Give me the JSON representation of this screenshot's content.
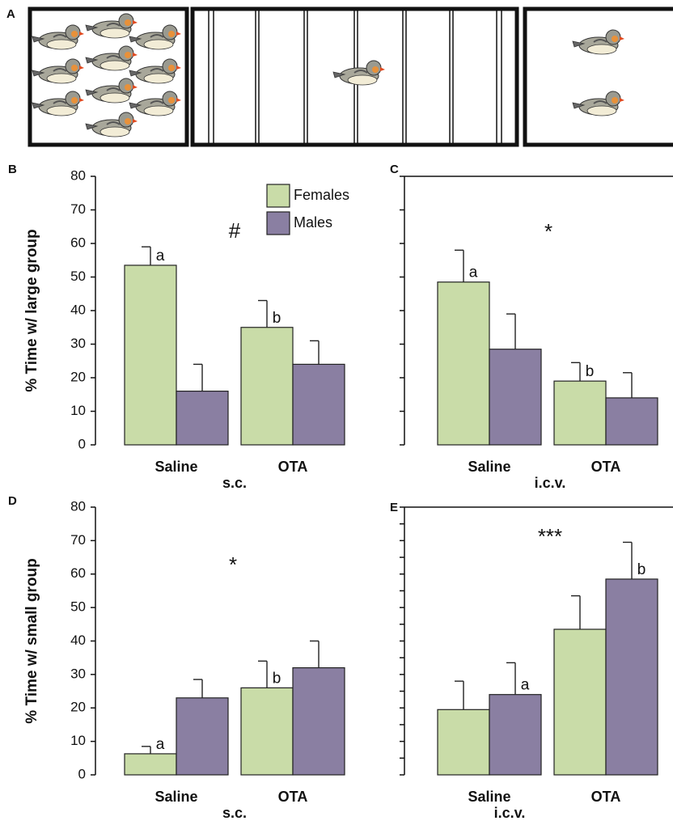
{
  "panel_a": {
    "label": "A"
  },
  "chart_data": [
    {
      "type": "bar",
      "panel": "B",
      "y_label": "% Time w/ large group",
      "group_label": "s.c.",
      "annotation": "#",
      "categories": [
        "Saline",
        "OTA"
      ],
      "ylim": [
        0,
        80
      ],
      "yticks": [
        0,
        10,
        20,
        30,
        40,
        50,
        60,
        70,
        80
      ],
      "tick_labels": true,
      "legend": true,
      "series": [
        {
          "name": "Females",
          "color": "#c9dca8",
          "values": [
            53.5,
            35
          ],
          "errors": [
            5.5,
            8
          ],
          "letters": [
            "a",
            "b"
          ]
        },
        {
          "name": "Males",
          "color": "#8a7fa2",
          "values": [
            16,
            24
          ],
          "errors": [
            8,
            7
          ],
          "letters": [
            null,
            null
          ]
        }
      ]
    },
    {
      "type": "bar",
      "panel": "C",
      "group_label": "i.c.v.",
      "annotation": "*",
      "categories": [
        "Saline",
        "OTA"
      ],
      "ylim": [
        0,
        80
      ],
      "yticks": [
        0,
        10,
        20,
        30,
        40,
        50,
        60,
        70,
        80
      ],
      "tick_labels": false,
      "legend": false,
      "series": [
        {
          "name": "Females",
          "color": "#c9dca8",
          "values": [
            48.5,
            19
          ],
          "errors": [
            9.5,
            5.5
          ],
          "letters": [
            "a",
            "b"
          ]
        },
        {
          "name": "Males",
          "color": "#8a7fa2",
          "values": [
            28.5,
            14
          ],
          "errors": [
            10.5,
            7.5
          ],
          "letters": [
            null,
            null
          ]
        }
      ]
    },
    {
      "type": "bar",
      "panel": "D",
      "y_label": "% Time w/ small group",
      "group_label": "s.c.",
      "annotation": "*",
      "categories": [
        "Saline",
        "OTA"
      ],
      "ylim": [
        0,
        80
      ],
      "yticks": [
        0,
        10,
        20,
        30,
        40,
        50,
        60,
        70,
        80
      ],
      "tick_labels": true,
      "legend": false,
      "series": [
        {
          "name": "Females",
          "color": "#c9dca8",
          "values": [
            6.3,
            26
          ],
          "errors": [
            2.2,
            8
          ],
          "letters": [
            "a",
            "b"
          ]
        },
        {
          "name": "Males",
          "color": "#8a7fa2",
          "values": [
            23,
            32
          ],
          "errors": [
            5.5,
            8
          ],
          "letters": [
            null,
            null
          ]
        }
      ]
    },
    {
      "type": "bar",
      "panel": "E",
      "group_label": "i.c.v.",
      "annotation": "***",
      "categories": [
        "Saline",
        "OTA"
      ],
      "ylim": [
        0,
        80
      ],
      "yticks": [
        0,
        5,
        10,
        15,
        20,
        25,
        30,
        35,
        40,
        45,
        50,
        55,
        60,
        65,
        70,
        75,
        80
      ],
      "tick_labels": false,
      "legend": false,
      "series": [
        {
          "name": "Females",
          "color": "#c9dca8",
          "values": [
            19.5,
            43.5
          ],
          "errors": [
            8.5,
            10
          ],
          "letters": [
            null,
            null
          ]
        },
        {
          "name": "Males",
          "color": "#8a7fa2",
          "values": [
            24,
            58.5
          ],
          "errors": [
            9.5,
            11
          ],
          "letters": [
            "a",
            "b"
          ]
        }
      ]
    }
  ]
}
